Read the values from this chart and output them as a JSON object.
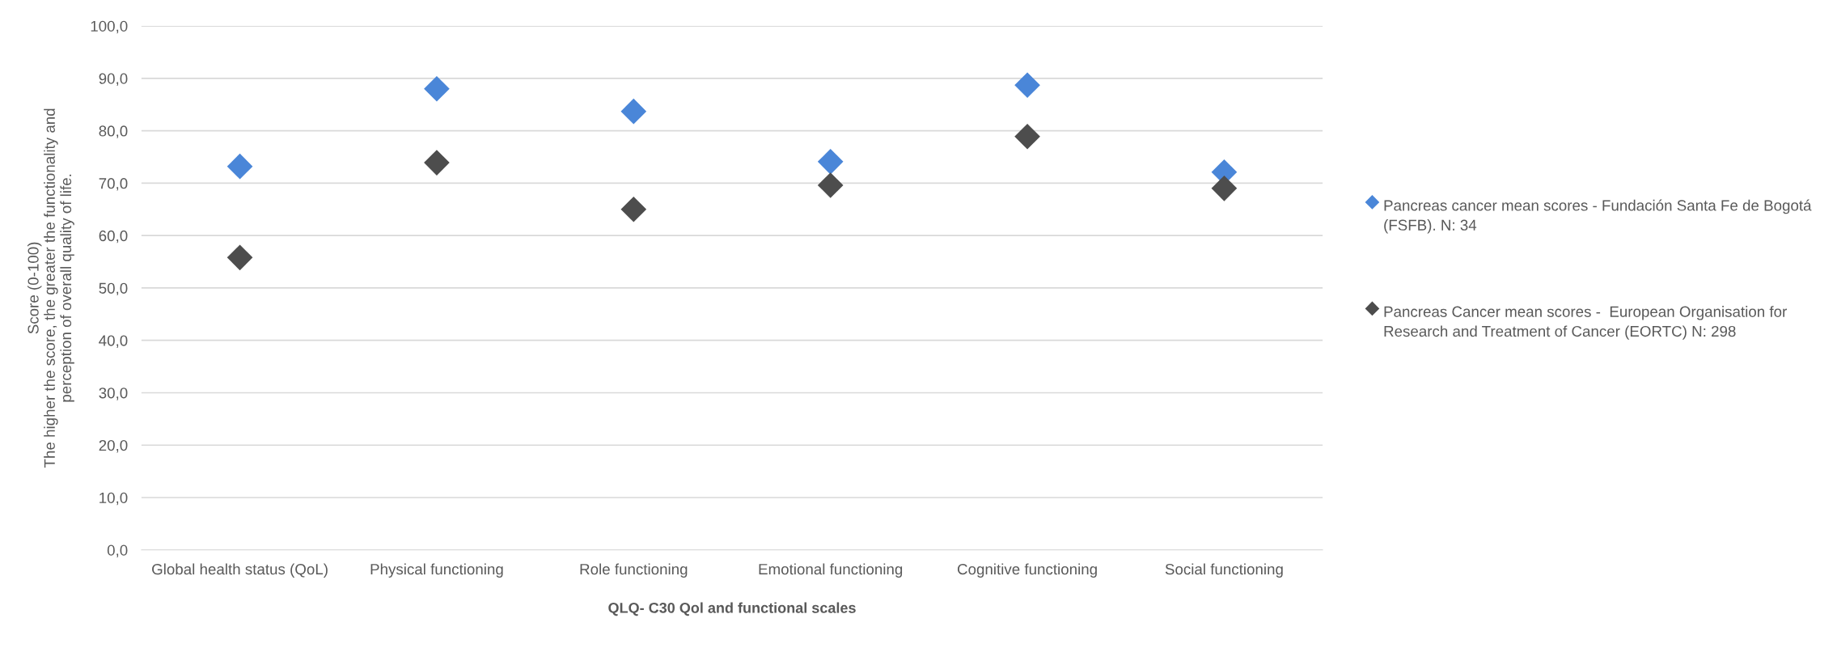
{
  "chart_data": {
    "type": "scatter",
    "categories": [
      "Global health status (QoL)",
      "Physical functioning",
      "Role functioning",
      "Emotional functioning",
      "Cognitive functioning",
      "Social functioning"
    ],
    "series": [
      {
        "name": "Pancreas cancer mean scores - Fundación Santa Fe de Bogotá (FSFB). N: 34",
        "color": "#4a86d8",
        "values": [
          73.2,
          88.0,
          83.7,
          74.1,
          88.7,
          72.1
        ]
      },
      {
        "name": "Pancreas Cancer mean scores -  European Organisation for Research and Treatment of Cancer (EORTC) N: 298",
        "color": "#4d4d4d",
        "values": [
          55.8,
          73.9,
          65.0,
          69.6,
          78.9,
          69.0
        ]
      }
    ],
    "xlabel": "QLQ- C30 Qol and functional scales",
    "ylabel": "Score (0-100)\nThe higher the score, the greater the functionality and\nperception of overall quality of life.",
    "ylim": [
      0,
      100
    ],
    "yticks": [
      {
        "value": 0,
        "label": "0,0"
      },
      {
        "value": 10,
        "label": "10,0"
      },
      {
        "value": 20,
        "label": "20,0"
      },
      {
        "value": 30,
        "label": "30,0"
      },
      {
        "value": 40,
        "label": "40,0"
      },
      {
        "value": 50,
        "label": "50,0"
      },
      {
        "value": 60,
        "label": "60,0"
      },
      {
        "value": 70,
        "label": "70,0"
      },
      {
        "value": 80,
        "label": "80,0"
      },
      {
        "value": 90,
        "label": "90,0"
      },
      {
        "value": 100,
        "label": "100,0"
      }
    ],
    "grid": "y",
    "legend": "right",
    "marker": "diamond"
  }
}
